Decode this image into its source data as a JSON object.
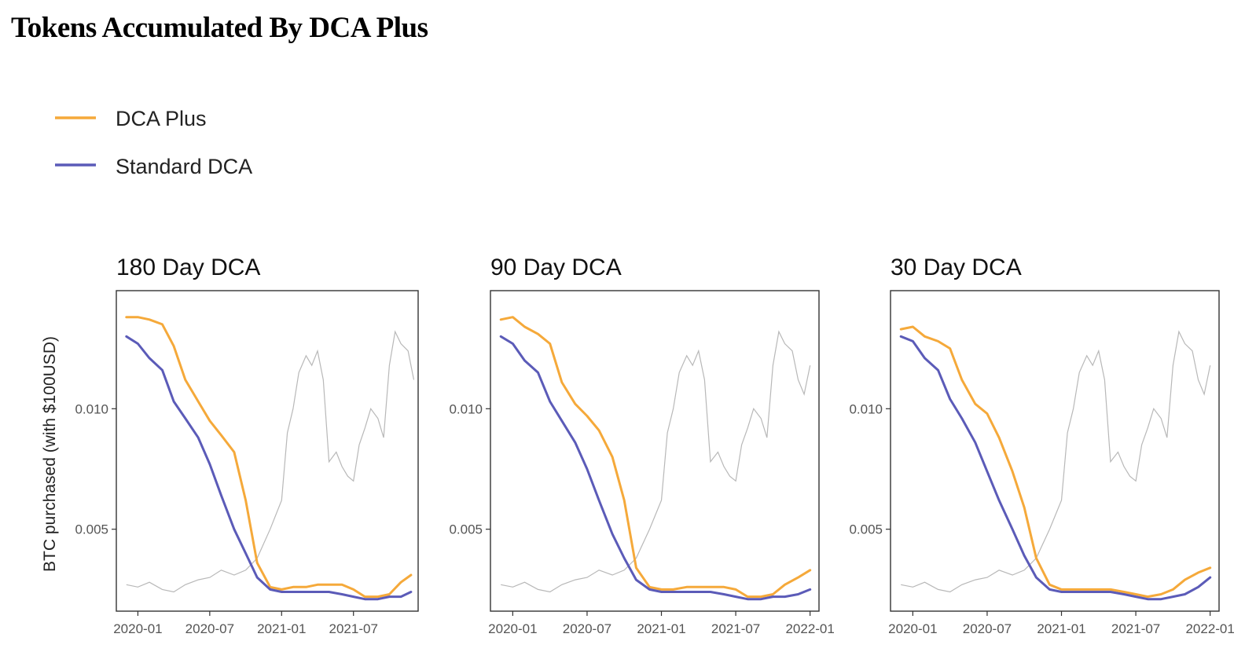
{
  "title": "Tokens Accumulated By DCA Plus",
  "colors": {
    "dca_plus": "#f5a93a",
    "standard": "#5b5bb8",
    "price": "#b8b8b8",
    "axis": "#333333"
  },
  "chart_data": {
    "type": "line",
    "legend": [
      {
        "name": "DCA Plus",
        "color": "#f5a93a"
      },
      {
        "name": "Standard DCA",
        "color": "#5b5bb8"
      }
    ],
    "ylabel": "BTC purchased (with $100USD)",
    "ylim": [
      0.0016,
      0.0149
    ],
    "y_ticks": [
      0.005,
      0.01
    ],
    "y_tick_labels": [
      "0.005",
      "0.010"
    ],
    "xlim": [
      2019.85,
      2022.06
    ],
    "panels": [
      {
        "title": "180 Day DCA",
        "x_ticks": [
          2020.0,
          2020.5,
          2021.0,
          2021.5
        ],
        "x_tick_labels": [
          "2020-01",
          "2020-07",
          "2021-01",
          "2021-07"
        ],
        "xlim": [
          2019.85,
          2021.95
        ],
        "series": [
          {
            "name": "DCA Plus",
            "x": [
              2019.92,
              2020.0,
              2020.08,
              2020.17,
              2020.25,
              2020.33,
              2020.42,
              2020.5,
              2020.58,
              2020.67,
              2020.75,
              2020.83,
              2020.92,
              2021.0,
              2021.08,
              2021.17,
              2021.25,
              2021.33,
              2021.42,
              2021.5,
              2021.58,
              2021.67,
              2021.75,
              2021.83,
              2021.9
            ],
            "y": [
              0.0138,
              0.0138,
              0.0137,
              0.0135,
              0.0126,
              0.0112,
              0.0103,
              0.0095,
              0.0089,
              0.0082,
              0.0062,
              0.0036,
              0.0026,
              0.0025,
              0.0026,
              0.0026,
              0.0027,
              0.0027,
              0.0027,
              0.0025,
              0.0022,
              0.0022,
              0.0023,
              0.0028,
              0.0031
            ]
          },
          {
            "name": "Standard DCA",
            "x": [
              2019.92,
              2020.0,
              2020.08,
              2020.17,
              2020.25,
              2020.33,
              2020.42,
              2020.5,
              2020.58,
              2020.67,
              2020.75,
              2020.83,
              2020.92,
              2021.0,
              2021.08,
              2021.17,
              2021.25,
              2021.33,
              2021.42,
              2021.5,
              2021.58,
              2021.67,
              2021.75,
              2021.83,
              2021.9
            ],
            "y": [
              0.013,
              0.0127,
              0.0121,
              0.0116,
              0.0103,
              0.0096,
              0.0088,
              0.0077,
              0.0064,
              0.005,
              0.004,
              0.003,
              0.0025,
              0.0024,
              0.0024,
              0.0024,
              0.0024,
              0.0024,
              0.0023,
              0.0022,
              0.0021,
              0.0021,
              0.0022,
              0.0022,
              0.0024
            ]
          }
        ]
      },
      {
        "title": "90 Day DCA",
        "x_ticks": [
          2020.0,
          2020.5,
          2021.0,
          2021.5,
          2022.0
        ],
        "x_tick_labels": [
          "2020-01",
          "2020-07",
          "2021-01",
          "2021-07",
          "2022-01"
        ],
        "xlim": [
          2019.85,
          2022.06
        ],
        "series": [
          {
            "name": "DCA Plus",
            "x": [
              2019.92,
              2020.0,
              2020.08,
              2020.17,
              2020.25,
              2020.33,
              2020.42,
              2020.5,
              2020.58,
              2020.67,
              2020.75,
              2020.83,
              2020.92,
              2021.0,
              2021.08,
              2021.17,
              2021.25,
              2021.33,
              2021.42,
              2021.5,
              2021.58,
              2021.67,
              2021.75,
              2021.83,
              2021.92,
              2022.0
            ],
            "y": [
              0.0137,
              0.0138,
              0.0134,
              0.0131,
              0.0127,
              0.0111,
              0.0102,
              0.0097,
              0.0091,
              0.008,
              0.0062,
              0.0034,
              0.0026,
              0.0025,
              0.0025,
              0.0026,
              0.0026,
              0.0026,
              0.0026,
              0.0025,
              0.0022,
              0.0022,
              0.0023,
              0.0027,
              0.003,
              0.0033
            ]
          },
          {
            "name": "Standard DCA",
            "x": [
              2019.92,
              2020.0,
              2020.08,
              2020.17,
              2020.25,
              2020.33,
              2020.42,
              2020.5,
              2020.58,
              2020.67,
              2020.75,
              2020.83,
              2020.92,
              2021.0,
              2021.08,
              2021.17,
              2021.25,
              2021.33,
              2021.42,
              2021.5,
              2021.58,
              2021.67,
              2021.75,
              2021.83,
              2021.92,
              2022.0
            ],
            "y": [
              0.013,
              0.0127,
              0.012,
              0.0115,
              0.0103,
              0.0095,
              0.0086,
              0.0075,
              0.0062,
              0.0048,
              0.0038,
              0.0029,
              0.0025,
              0.0024,
              0.0024,
              0.0024,
              0.0024,
              0.0024,
              0.0023,
              0.0022,
              0.0021,
              0.0021,
              0.0022,
              0.0022,
              0.0023,
              0.0025
            ]
          }
        ]
      },
      {
        "title": "30 Day DCA",
        "x_ticks": [
          2020.0,
          2020.5,
          2021.0,
          2021.5,
          2022.0
        ],
        "x_tick_labels": [
          "2020-01",
          "2020-07",
          "2021-01",
          "2021-07",
          "2022-01"
        ],
        "xlim": [
          2019.85,
          2022.06
        ],
        "series": [
          {
            "name": "DCA Plus",
            "x": [
              2019.92,
              2020.0,
              2020.08,
              2020.17,
              2020.25,
              2020.33,
              2020.42,
              2020.5,
              2020.58,
              2020.67,
              2020.75,
              2020.83,
              2020.92,
              2021.0,
              2021.08,
              2021.17,
              2021.25,
              2021.33,
              2021.42,
              2021.5,
              2021.58,
              2021.67,
              2021.75,
              2021.83,
              2021.92,
              2022.0
            ],
            "y": [
              0.0133,
              0.0134,
              0.013,
              0.0128,
              0.0125,
              0.0112,
              0.0102,
              0.0098,
              0.0088,
              0.0074,
              0.0059,
              0.0038,
              0.0027,
              0.0025,
              0.0025,
              0.0025,
              0.0025,
              0.0025,
              0.0024,
              0.0023,
              0.0022,
              0.0023,
              0.0025,
              0.0029,
              0.0032,
              0.0034
            ]
          },
          {
            "name": "Standard DCA",
            "x": [
              2019.92,
              2020.0,
              2020.08,
              2020.17,
              2020.25,
              2020.33,
              2020.42,
              2020.5,
              2020.58,
              2020.67,
              2020.75,
              2020.83,
              2020.92,
              2021.0,
              2021.08,
              2021.17,
              2021.25,
              2021.33,
              2021.42,
              2021.5,
              2021.58,
              2021.67,
              2021.75,
              2021.83,
              2021.92,
              2022.0
            ],
            "y": [
              0.013,
              0.0128,
              0.0121,
              0.0116,
              0.0104,
              0.0096,
              0.0086,
              0.0074,
              0.0062,
              0.005,
              0.0039,
              0.003,
              0.0025,
              0.0024,
              0.0024,
              0.0024,
              0.0024,
              0.0024,
              0.0023,
              0.0022,
              0.0021,
              0.0021,
              0.0022,
              0.0023,
              0.0026,
              0.003
            ]
          }
        ]
      }
    ],
    "price_reference": {
      "name": "BTC price (scaled, unlabeled)",
      "x": [
        2019.92,
        2020.0,
        2020.08,
        2020.17,
        2020.25,
        2020.33,
        2020.42,
        2020.5,
        2020.58,
        2020.67,
        2020.75,
        2020.83,
        2020.92,
        2021.0,
        2021.04,
        2021.08,
        2021.12,
        2021.17,
        2021.21,
        2021.25,
        2021.29,
        2021.33,
        2021.38,
        2021.42,
        2021.46,
        2021.5,
        2021.54,
        2021.58,
        2021.62,
        2021.67,
        2021.71,
        2021.75,
        2021.79,
        2021.83,
        2021.88,
        2021.92,
        2021.96,
        2022.0
      ],
      "y": [
        0.0027,
        0.0026,
        0.0028,
        0.0025,
        0.0024,
        0.0027,
        0.0029,
        0.003,
        0.0033,
        0.0031,
        0.0033,
        0.0038,
        0.005,
        0.0062,
        0.009,
        0.01,
        0.0115,
        0.0122,
        0.0118,
        0.0124,
        0.0112,
        0.0078,
        0.0082,
        0.0076,
        0.0072,
        0.007,
        0.0085,
        0.0092,
        0.01,
        0.0096,
        0.0088,
        0.0118,
        0.0132,
        0.0127,
        0.0124,
        0.0112,
        0.0106,
        0.0118
      ]
    }
  }
}
